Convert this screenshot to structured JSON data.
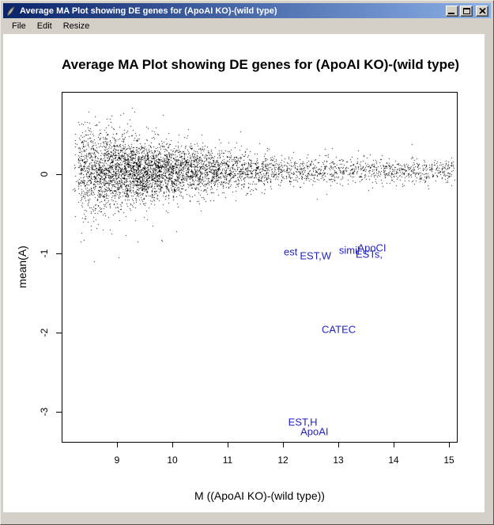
{
  "window": {
    "title": "Average MA Plot showing DE genes for (ApoAI KO)-(wild type)",
    "icon": "feather-icon",
    "controls": [
      "minimize",
      "maximize",
      "close"
    ]
  },
  "menu": {
    "items": [
      "File",
      "Edit",
      "Resize"
    ]
  },
  "colors": {
    "chrome": "#d4d0c8",
    "titlebar_gradient_from": "#0a246a",
    "titlebar_gradient_to": "#8ab0e8",
    "title_text": "#ffffff",
    "plot_background": "#ffffff",
    "point": "#000000",
    "de_label": "#2222c0",
    "axis": "#000000"
  },
  "chart_data": {
    "type": "scatter",
    "title": "Average MA Plot showing DE genes for (ApoAI KO)-(wild type)",
    "xlabel": "M ((ApoAI KO)-(wild type))",
    "ylabel": "mean(A)",
    "xlim": [
      8.0,
      15.16
    ],
    "ylim": [
      -3.39,
      1.04
    ],
    "x_ticks": [
      9,
      10,
      11,
      12,
      13,
      14,
      15
    ],
    "y_ticks": [
      0,
      -1,
      -2,
      -3
    ],
    "grid": false,
    "legend": null,
    "point_color": "#000000",
    "de_label_color": "#2222c0",
    "de_gene_labels": [
      {
        "text": "est",
        "x": 12.14,
        "y": -0.98
      },
      {
        "text": "EST,W",
        "x": 12.59,
        "y": -1.03
      },
      {
        "text": "simil",
        "x": 13.2,
        "y": -0.96
      },
      {
        "text": "ApoCI",
        "x": 13.61,
        "y": -0.93
      },
      {
        "text": "ESTs,",
        "x": 13.56,
        "y": -1.01
      },
      {
        "text": "CATEC",
        "x": 13.01,
        "y": -1.96
      },
      {
        "text": "EST,H",
        "x": 12.36,
        "y": -3.13
      },
      {
        "text": "ApoAI",
        "x": 12.57,
        "y": -3.25
      }
    ],
    "scatter_cloud": {
      "description": "Dense cloud of ~5000 unlabeled genes centred on mean(A)~0; widest and densest near M=9, tapering in spread and density toward M=15",
      "n_points": 5000,
      "seed": 7,
      "x_min": 8.2,
      "x_max": 15.12,
      "gamma_frac": 0.76,
      "gamma_origin": 8.18,
      "gamma_scale": 0.85,
      "tail_origin": 8.3,
      "tail_span": 6.8,
      "tail_pow": 0.8,
      "y_center": 0.045,
      "sigma_base": 0.06,
      "sigma_amp": 0.24,
      "sigma_x0": 8.4,
      "sigma_decay": 2.1,
      "outlier_frac": 0.015,
      "outlier_mult": 2.2
    }
  }
}
